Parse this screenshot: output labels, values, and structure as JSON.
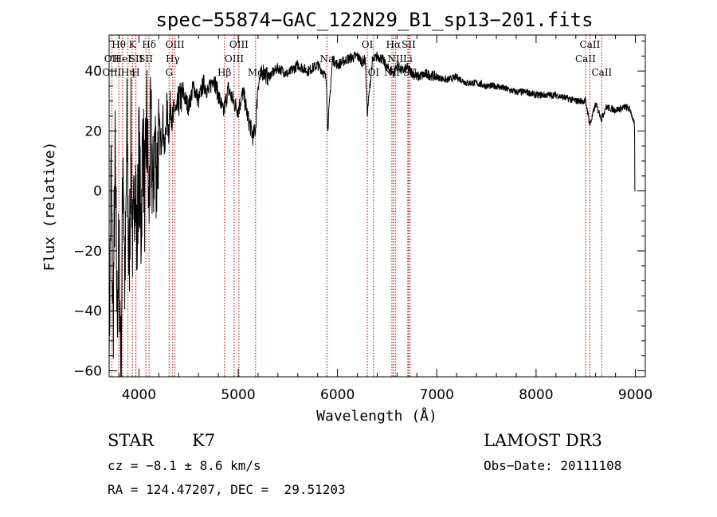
{
  "chart_data": {
    "type": "line",
    "title": "spec−55874−GAC_122N29_B1_sp13−201.fits",
    "xlabel": "Wavelength (Å)",
    "ylabel": "Flux (relative)",
    "xlim": [
      3700,
      9100
    ],
    "ylim": [
      -62,
      52
    ],
    "xticks": [
      4000,
      5000,
      6000,
      7000,
      8000,
      9000
    ],
    "xtick_labels": [
      "4000",
      "5000",
      "6000",
      "7000",
      "8000",
      "9000"
    ],
    "yticks": [
      -60,
      -40,
      -20,
      0,
      20,
      40
    ],
    "ytick_labels": [
      "−60",
      "−40",
      "−20",
      "0",
      "20",
      "40"
    ],
    "spectral_lines": [
      {
        "label": "Hθ",
        "wavelength": 3797,
        "row": 0
      },
      {
        "label": "OII",
        "wavelength": 3727,
        "row": 1
      },
      {
        "label": "OIII",
        "wavelength": 3727,
        "row": 2
      },
      {
        "label": "HeI",
        "wavelength": 3835,
        "row": 1
      },
      {
        "label": "Hη",
        "wavelength": 3889,
        "row": 2
      },
      {
        "label": "K",
        "wavelength": 3934,
        "row": 0
      },
      {
        "label": "SII",
        "wavelength": 3970,
        "row": 1
      },
      {
        "label": "H",
        "wavelength": 3968,
        "row": 2
      },
      {
        "label": "Hδ",
        "wavelength": 4102,
        "row": 0
      },
      {
        "label": "SII",
        "wavelength": 4070,
        "row": 1
      },
      {
        "label": "OIII",
        "wavelength": 4363,
        "row": 0
      },
      {
        "label": "Hγ",
        "wavelength": 4340,
        "row": 1
      },
      {
        "label": "G",
        "wavelength": 4304,
        "row": 2
      },
      {
        "label": "Hβ",
        "wavelength": 4861,
        "row": 2
      },
      {
        "label": "OIII",
        "wavelength": 5007,
        "row": 0
      },
      {
        "label": "OIII",
        "wavelength": 4959,
        "row": 1
      },
      {
        "label": "Mg",
        "wavelength": 5175,
        "row": 2
      },
      {
        "label": "Na",
        "wavelength": 5894,
        "row": 1
      },
      {
        "label": "OI",
        "wavelength": 6300,
        "row": 0
      },
      {
        "label": "OI",
        "wavelength": 6363,
        "row": 2
      },
      {
        "label": "Hα",
        "wavelength": 6563,
        "row": 0
      },
      {
        "label": "SII",
        "wavelength": 6717,
        "row": 0
      },
      {
        "label": "NII",
        "wavelength": 6583,
        "row": 1
      },
      {
        "label": "Li",
        "wavelength": 6708,
        "row": 1
      },
      {
        "label": "NII",
        "wavelength": 6548,
        "row": 2
      },
      {
        "label": "SII",
        "wavelength": 6731,
        "row": 2
      },
      {
        "label": "CaII",
        "wavelength": 8542,
        "row": 0
      },
      {
        "label": "CaII",
        "wavelength": 8498,
        "row": 1
      },
      {
        "label": "CaII",
        "wavelength": 8662,
        "row": 2
      }
    ],
    "series": [
      {
        "name": "flux",
        "x": [
          3700,
          3720,
          3740,
          3760,
          3780,
          3800,
          3820,
          3840,
          3860,
          3880,
          3900,
          3920,
          3940,
          3960,
          3980,
          4000,
          4020,
          4040,
          4060,
          4080,
          4100,
          4120,
          4140,
          4160,
          4180,
          4200,
          4220,
          4240,
          4260,
          4280,
          4300,
          4320,
          4340,
          4360,
          4380,
          4400,
          4450,
          4500,
          4550,
          4600,
          4650,
          4700,
          4750,
          4800,
          4850,
          4900,
          4950,
          5000,
          5050,
          5100,
          5150,
          5175,
          5200,
          5250,
          5300,
          5400,
          5500,
          5600,
          5700,
          5800,
          5850,
          5890,
          5900,
          5950,
          6000,
          6100,
          6200,
          6250,
          6280,
          6300,
          6350,
          6400,
          6450,
          6500,
          6550,
          6563,
          6600,
          6650,
          6700,
          6800,
          6900,
          7000,
          7100,
          7200,
          7300,
          7400,
          7500,
          7600,
          7700,
          7800,
          7900,
          8000,
          8100,
          8200,
          8300,
          8400,
          8500,
          8542,
          8600,
          8662,
          8700,
          8800,
          8900,
          8950,
          8990,
          9000
        ],
        "values": [
          -55,
          5,
          -45,
          10,
          -40,
          -20,
          -58,
          15,
          -35,
          20,
          -30,
          18,
          -25,
          12,
          -20,
          15,
          -15,
          20,
          -5,
          25,
          -8,
          22,
          -2,
          18,
          5,
          22,
          15,
          25,
          12,
          28,
          20,
          30,
          22,
          28,
          25,
          30,
          32,
          28,
          35,
          30,
          36,
          33,
          38,
          32,
          26,
          34,
          30,
          27,
          33,
          24,
          18,
          21,
          36,
          40,
          38,
          41,
          39,
          42,
          40,
          42,
          40,
          37,
          20,
          44,
          42,
          44,
          45,
          43,
          44,
          26,
          43,
          45,
          44,
          41,
          40,
          39,
          42,
          40,
          41,
          38,
          39,
          38,
          37,
          38,
          36,
          36,
          35,
          35,
          34,
          33,
          33,
          32,
          32,
          32,
          31,
          30,
          30,
          22,
          29,
          24,
          28,
          27,
          28,
          27,
          22,
          0
        ]
      }
    ]
  },
  "info": {
    "object_class": "STAR",
    "subclass": "K7",
    "survey": "LAMOST DR3",
    "redshift": "cz = −8.1 ± 8.6 km/s",
    "obs_date": "Obs−Date: 20111108",
    "coords": "RA = 124.47207, DEC =  29.51203"
  }
}
